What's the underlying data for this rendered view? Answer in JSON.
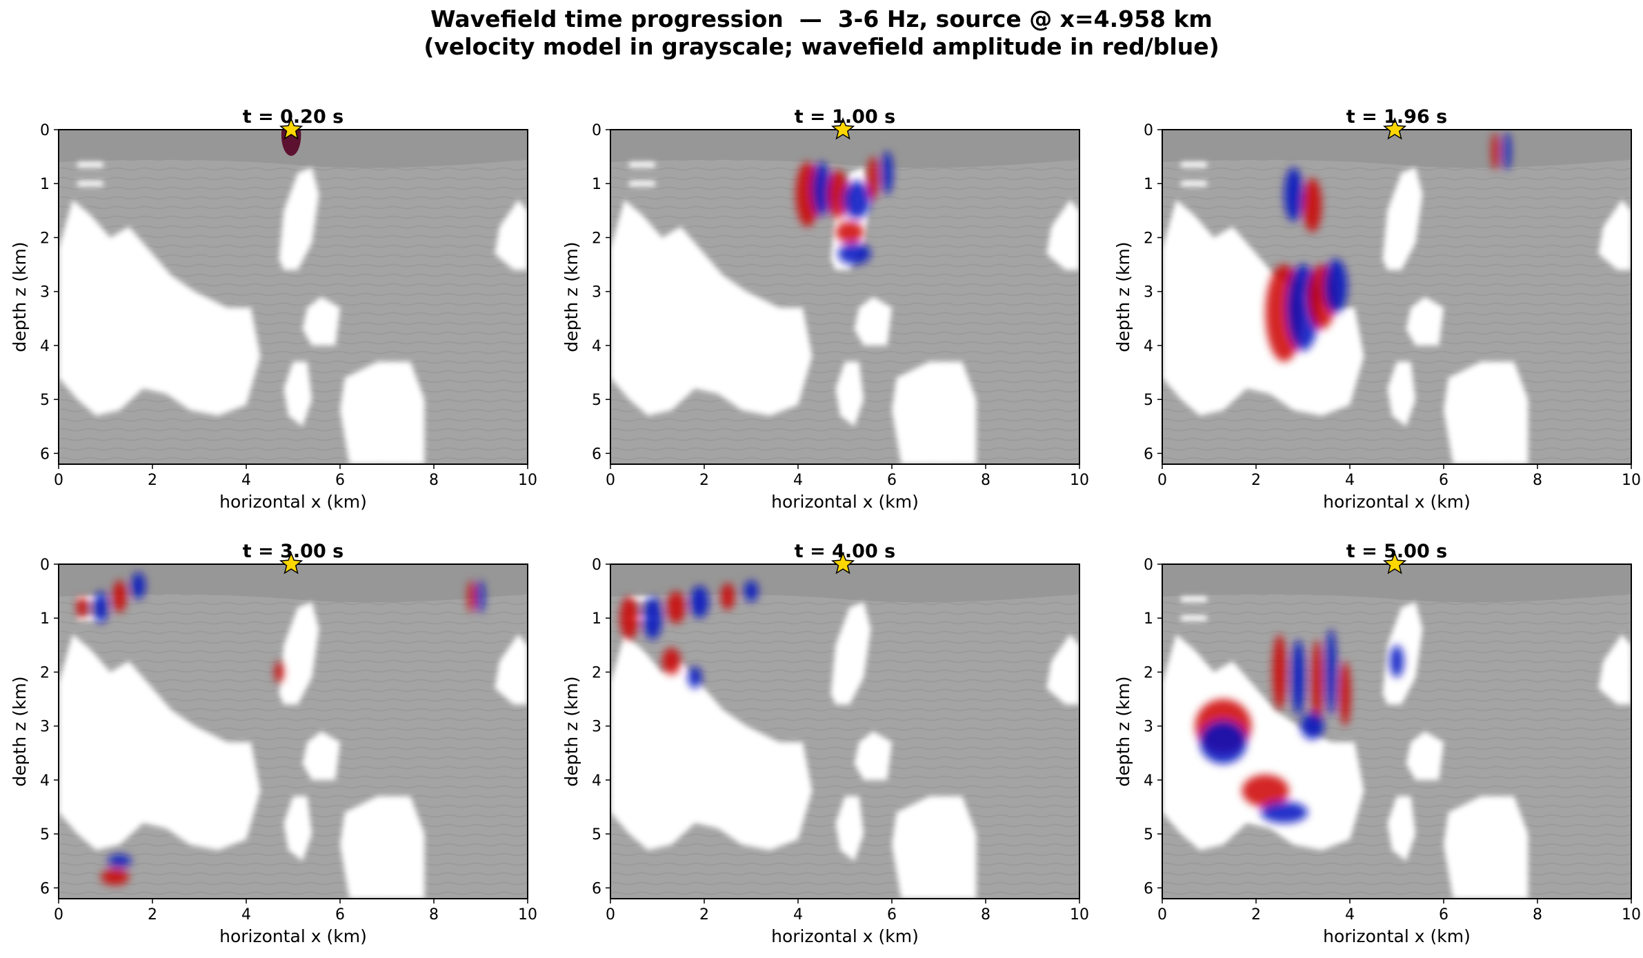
{
  "figure": {
    "title_line1": "Wavefield time progression  —  3-6 Hz, source @ x=4.958 km",
    "title_line2": "(velocity model in grayscale; wavefield amplitude in red/blue)"
  },
  "colors": {
    "background_model": "#a3a3a3",
    "water_layer": "#979797",
    "salt_body": "#ffffff",
    "positive_amplitude": "#cc0000",
    "negative_amplitude": "#0010c0",
    "source_star": "#ffd700"
  },
  "chart_data": [
    {
      "type": "heatmap",
      "title": "t = 0.20 s",
      "xlabel": "horizontal x (km)",
      "ylabel": "depth z (km)",
      "xlim": [
        0,
        10
      ],
      "ylim": [
        6.2,
        0
      ],
      "xticks": [
        "0",
        "2",
        "4",
        "6",
        "8",
        "10"
      ],
      "yticks": [
        "0",
        "1",
        "2",
        "3",
        "4",
        "5",
        "6"
      ],
      "source": {
        "x": 4.958,
        "z": 0
      },
      "wavefronts": [
        {
          "x": 4.958,
          "z": 0.1,
          "rx": 0.6,
          "rz": 0.35,
          "sign": 0,
          "shape": "burst"
        }
      ]
    },
    {
      "type": "heatmap",
      "title": "t = 1.00 s",
      "xlabel": "horizontal x (km)",
      "ylabel": "depth z (km)",
      "xlim": [
        0,
        10
      ],
      "ylim": [
        6.2,
        0
      ],
      "xticks": [
        "0",
        "2",
        "4",
        "6",
        "8",
        "10"
      ],
      "yticks": [
        "0",
        "1",
        "2",
        "3",
        "4",
        "5",
        "6"
      ],
      "source": {
        "x": 4.958,
        "z": 0
      },
      "wavefronts": [
        {
          "x": 4.2,
          "z": 1.2,
          "rx": 0.25,
          "rz": 0.6,
          "sign": 1
        },
        {
          "x": 4.5,
          "z": 1.1,
          "rx": 0.2,
          "rz": 0.5,
          "sign": -1
        },
        {
          "x": 4.85,
          "z": 1.2,
          "rx": 0.22,
          "rz": 0.45,
          "sign": 1
        },
        {
          "x": 5.25,
          "z": 1.3,
          "rx": 0.3,
          "rz": 0.35,
          "sign": -1
        },
        {
          "x": 5.6,
          "z": 0.9,
          "rx": 0.12,
          "rz": 0.4,
          "sign": 1
        },
        {
          "x": 5.9,
          "z": 0.8,
          "rx": 0.12,
          "rz": 0.4,
          "sign": -1
        },
        {
          "x": 5.1,
          "z": 1.9,
          "rx": 0.3,
          "rz": 0.2,
          "sign": 1
        },
        {
          "x": 5.2,
          "z": 2.3,
          "rx": 0.35,
          "rz": 0.2,
          "sign": -1
        }
      ]
    },
    {
      "type": "heatmap",
      "title": "t = 1.96 s",
      "xlabel": "horizontal x (km)",
      "ylabel": "depth z (km)",
      "xlim": [
        0,
        10
      ],
      "ylim": [
        6.2,
        0
      ],
      "xticks": [
        "0",
        "2",
        "4",
        "6",
        "8",
        "10"
      ],
      "yticks": [
        "0",
        "1",
        "2",
        "3",
        "4",
        "5",
        "6"
      ],
      "source": {
        "x": 4.958,
        "z": 0
      },
      "wavefronts": [
        {
          "x": 2.6,
          "z": 3.4,
          "rx": 0.4,
          "rz": 0.9,
          "sign": 1
        },
        {
          "x": 3.0,
          "z": 3.3,
          "rx": 0.35,
          "rz": 0.8,
          "sign": -1
        },
        {
          "x": 3.4,
          "z": 3.1,
          "rx": 0.3,
          "rz": 0.6,
          "sign": 1
        },
        {
          "x": 3.7,
          "z": 2.9,
          "rx": 0.25,
          "rz": 0.5,
          "sign": -1
        },
        {
          "x": 2.8,
          "z": 1.2,
          "rx": 0.2,
          "rz": 0.5,
          "sign": -1
        },
        {
          "x": 3.2,
          "z": 1.4,
          "rx": 0.2,
          "rz": 0.5,
          "sign": 1
        },
        {
          "x": 7.1,
          "z": 0.4,
          "rx": 0.08,
          "rz": 0.35,
          "sign": 1
        },
        {
          "x": 7.35,
          "z": 0.4,
          "rx": 0.08,
          "rz": 0.35,
          "sign": -1
        }
      ]
    },
    {
      "type": "heatmap",
      "title": "t = 3.00 s",
      "xlabel": "horizontal x (km)",
      "ylabel": "depth z (km)",
      "xlim": [
        0,
        10
      ],
      "ylim": [
        6.2,
        0
      ],
      "xticks": [
        "0",
        "2",
        "4",
        "6",
        "8",
        "10"
      ],
      "yticks": [
        "0",
        "1",
        "2",
        "3",
        "4",
        "5",
        "6"
      ],
      "source": {
        "x": 4.958,
        "z": 0
      },
      "wavefronts": [
        {
          "x": 0.9,
          "z": 0.8,
          "rx": 0.15,
          "rz": 0.3,
          "sign": -1
        },
        {
          "x": 1.3,
          "z": 0.6,
          "rx": 0.15,
          "rz": 0.3,
          "sign": 1
        },
        {
          "x": 1.7,
          "z": 0.4,
          "rx": 0.15,
          "rz": 0.25,
          "sign": -1
        },
        {
          "x": 0.5,
          "z": 0.8,
          "rx": 0.12,
          "rz": 0.2,
          "sign": 1
        },
        {
          "x": 8.8,
          "z": 0.6,
          "rx": 0.08,
          "rz": 0.3,
          "sign": 1
        },
        {
          "x": 9.0,
          "z": 0.6,
          "rx": 0.08,
          "rz": 0.3,
          "sign": -1
        },
        {
          "x": 1.2,
          "z": 5.8,
          "rx": 0.3,
          "rz": 0.15,
          "sign": 1
        },
        {
          "x": 1.3,
          "z": 5.5,
          "rx": 0.25,
          "rz": 0.12,
          "sign": -1
        },
        {
          "x": 4.7,
          "z": 2.0,
          "rx": 0.1,
          "rz": 0.2,
          "sign": 1
        }
      ]
    },
    {
      "type": "heatmap",
      "title": "t = 4.00 s",
      "xlabel": "horizontal x (km)",
      "ylabel": "depth z (km)",
      "xlim": [
        0,
        10
      ],
      "ylim": [
        6.2,
        0
      ],
      "xticks": [
        "0",
        "2",
        "4",
        "6",
        "8",
        "10"
      ],
      "yticks": [
        "0",
        "1",
        "2",
        "3",
        "4",
        "5",
        "6"
      ],
      "source": {
        "x": 4.958,
        "z": 0
      },
      "wavefronts": [
        {
          "x": 0.4,
          "z": 1.0,
          "rx": 0.2,
          "rz": 0.4,
          "sign": 1
        },
        {
          "x": 0.9,
          "z": 1.0,
          "rx": 0.2,
          "rz": 0.4,
          "sign": -1
        },
        {
          "x": 1.4,
          "z": 0.8,
          "rx": 0.2,
          "rz": 0.3,
          "sign": 1
        },
        {
          "x": 1.9,
          "z": 0.7,
          "rx": 0.2,
          "rz": 0.3,
          "sign": -1
        },
        {
          "x": 2.5,
          "z": 0.6,
          "rx": 0.15,
          "rz": 0.25,
          "sign": 1
        },
        {
          "x": 3.0,
          "z": 0.5,
          "rx": 0.15,
          "rz": 0.2,
          "sign": -1
        },
        {
          "x": 1.3,
          "z": 1.8,
          "rx": 0.2,
          "rz": 0.25,
          "sign": 1
        },
        {
          "x": 1.8,
          "z": 2.1,
          "rx": 0.15,
          "rz": 0.2,
          "sign": -1
        }
      ]
    },
    {
      "type": "heatmap",
      "title": "t = 5.00 s",
      "xlabel": "horizontal x (km)",
      "ylabel": "depth z (km)",
      "xlim": [
        0,
        10
      ],
      "ylim": [
        6.2,
        0
      ],
      "xticks": [
        "0",
        "2",
        "4",
        "6",
        "8",
        "10"
      ],
      "yticks": [
        "0",
        "1",
        "2",
        "3",
        "4",
        "5",
        "6"
      ],
      "source": {
        "x": 4.958,
        "z": 0
      },
      "wavefronts": [
        {
          "x": 1.3,
          "z": 3.0,
          "rx": 0.6,
          "rz": 0.5,
          "sign": 1
        },
        {
          "x": 1.3,
          "z": 3.3,
          "rx": 0.5,
          "rz": 0.4,
          "sign": -1
        },
        {
          "x": 2.5,
          "z": 2.0,
          "rx": 0.15,
          "rz": 0.7,
          "sign": 1
        },
        {
          "x": 2.9,
          "z": 2.1,
          "rx": 0.15,
          "rz": 0.7,
          "sign": -1
        },
        {
          "x": 3.3,
          "z": 2.2,
          "rx": 0.12,
          "rz": 0.8,
          "sign": 1
        },
        {
          "x": 3.6,
          "z": 2.0,
          "rx": 0.12,
          "rz": 0.8,
          "sign": -1
        },
        {
          "x": 3.9,
          "z": 2.4,
          "rx": 0.12,
          "rz": 0.6,
          "sign": 1
        },
        {
          "x": 3.2,
          "z": 3.0,
          "rx": 0.25,
          "rz": 0.25,
          "sign": -1
        },
        {
          "x": 2.2,
          "z": 4.2,
          "rx": 0.5,
          "rz": 0.3,
          "sign": 1
        },
        {
          "x": 2.6,
          "z": 4.6,
          "rx": 0.5,
          "rz": 0.2,
          "sign": -1
        },
        {
          "x": 5.0,
          "z": 1.8,
          "rx": 0.15,
          "rz": 0.3,
          "sign": -1
        }
      ]
    }
  ]
}
